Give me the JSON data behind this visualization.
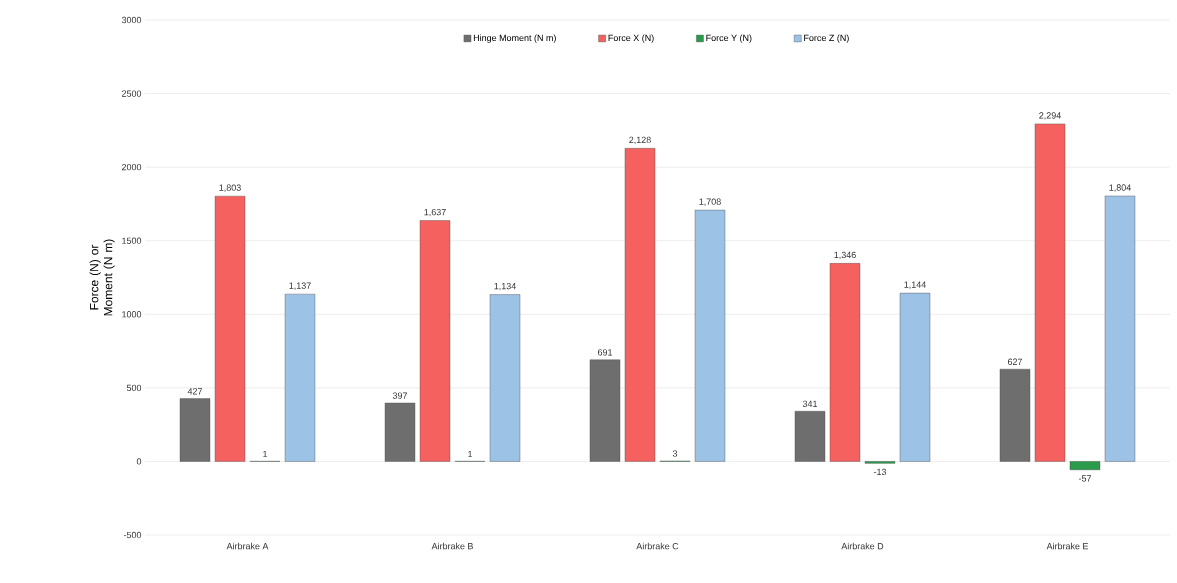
{
  "chart_data": {
    "type": "bar",
    "ylabel": "Force (N) or Moment (N m)",
    "categories": [
      "Airbrake A",
      "Airbrake B",
      "Airbrake C",
      "Airbrake D",
      "Airbrake E"
    ],
    "series": [
      {
        "name": "Hinge Moment (N m)",
        "color": "#6e6e6e",
        "values": [
          427,
          397,
          691,
          341,
          627
        ],
        "value_labels": [
          "427",
          "397",
          "691",
          "341",
          "627"
        ]
      },
      {
        "name": "Force X (N)",
        "color": "#f4615f",
        "values": [
          1803,
          1637,
          2128,
          1346,
          2294
        ],
        "value_labels": [
          "1,803",
          "1,637",
          "2,128",
          "1,346",
          "2,294"
        ]
      },
      {
        "name": "Force Y (N)",
        "color": "#2c9a4c",
        "values": [
          1,
          1,
          3,
          -13,
          -57
        ],
        "value_labels": [
          "1",
          "1",
          "3",
          "-13",
          "-57"
        ]
      },
      {
        "name": "Force Z (N)",
        "color": "#9cc2e5",
        "values": [
          1137,
          1134,
          1708,
          1144,
          1804
        ],
        "value_labels": [
          "1,137",
          "1,134",
          "1,708",
          "1,144",
          "1,804"
        ]
      }
    ],
    "ylim": [
      -500,
      3000
    ],
    "yticks": [
      -500,
      0,
      500,
      1000,
      1500,
      2000,
      2500,
      3000
    ],
    "grid": "y",
    "legend": "top"
  }
}
